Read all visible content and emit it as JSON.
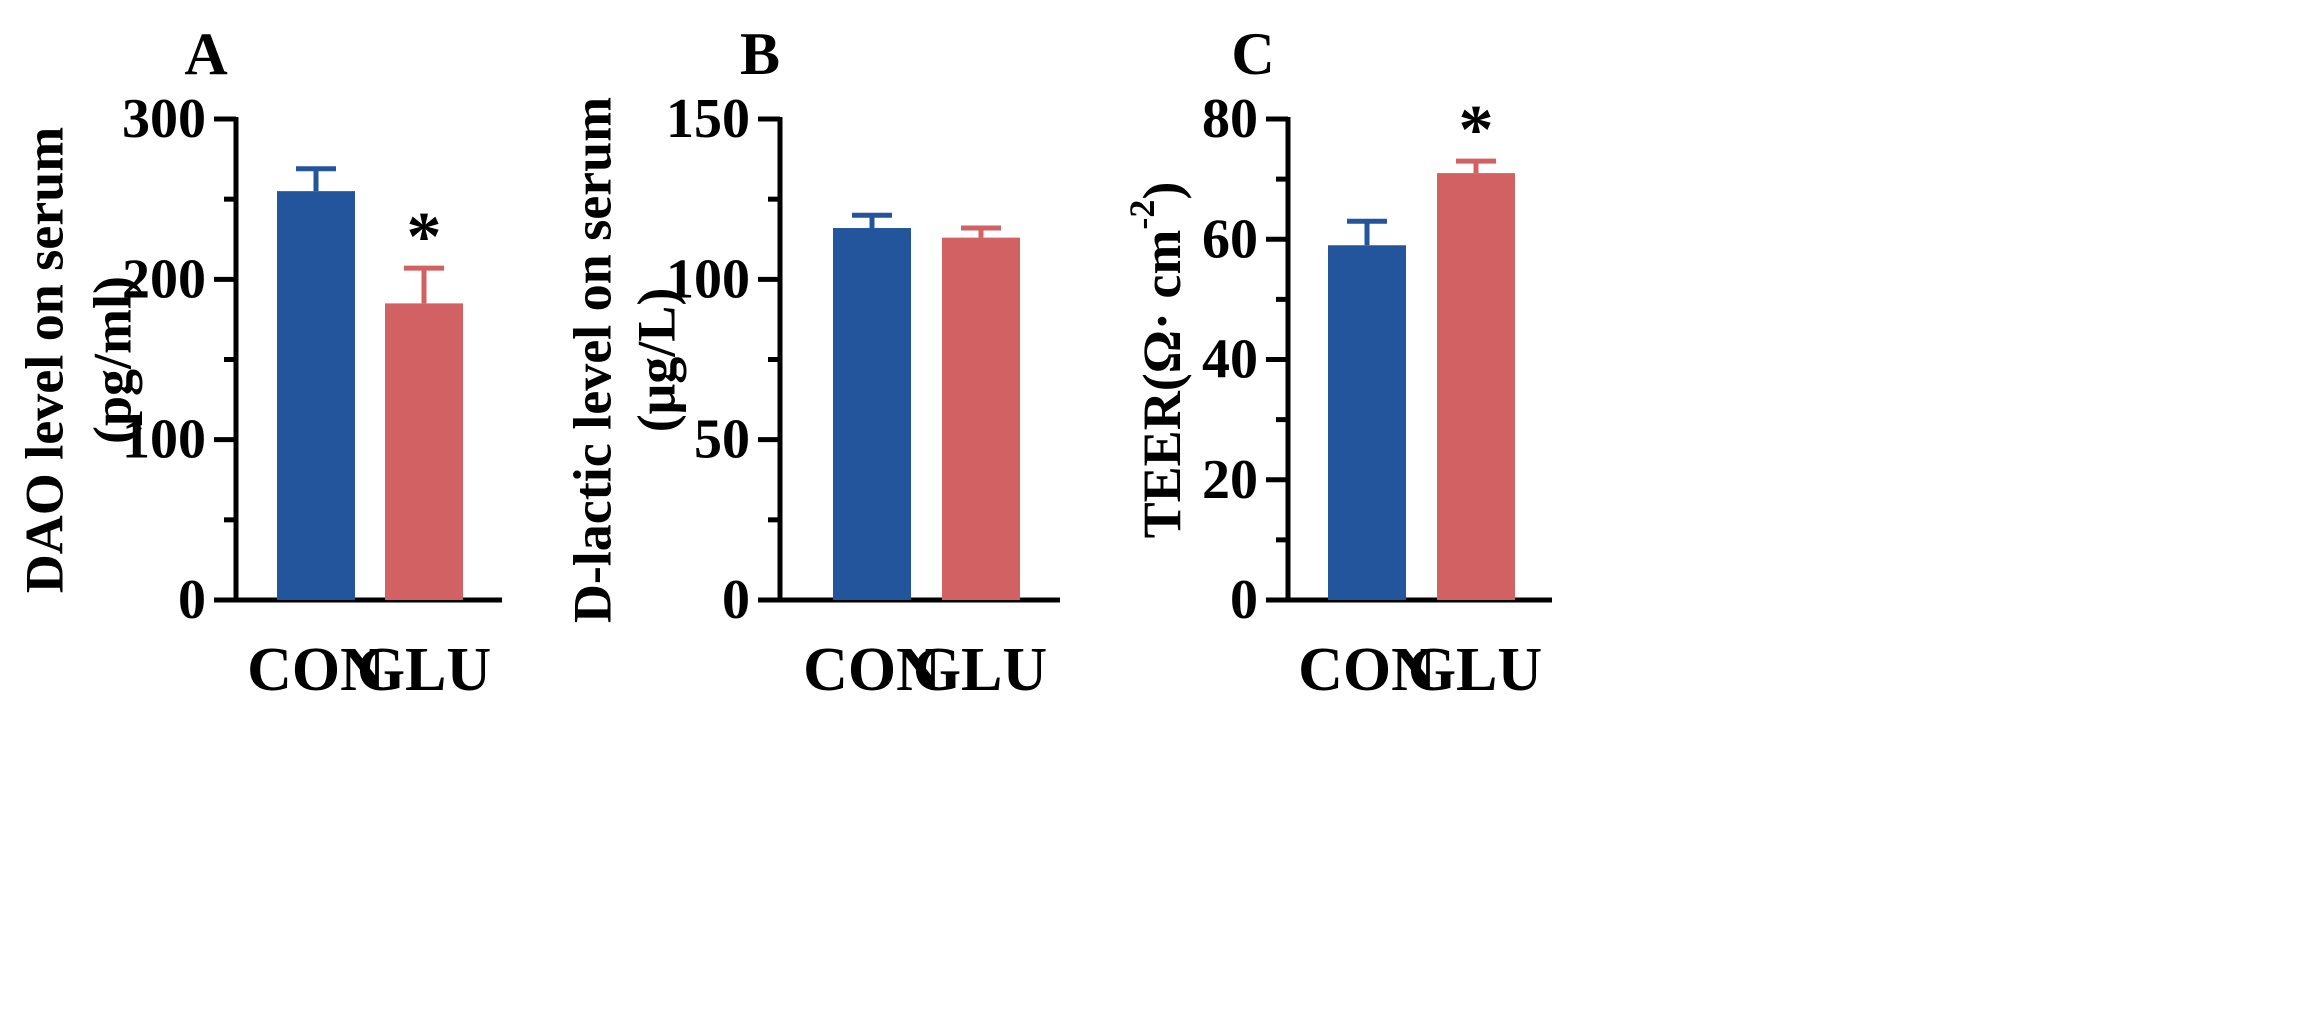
{
  "chart_data": [
    {
      "panel": "A",
      "type": "bar",
      "categories": [
        "CON",
        "GLU"
      ],
      "values": [
        255,
        185
      ],
      "errors": [
        14,
        22
      ],
      "significance": [
        "",
        "*"
      ],
      "ylabel_line1": "DAO level on serum",
      "ylabel_line2": "(pg/ml)",
      "ylim": [
        0,
        300
      ],
      "yticks_major": [
        0,
        100,
        200,
        300
      ],
      "yticks_minor": [
        50,
        150,
        250
      ],
      "colors": [
        "#22559b",
        "#d16163"
      ]
    },
    {
      "panel": "B",
      "type": "bar",
      "categories": [
        "CON",
        "GLU"
      ],
      "values": [
        116,
        113
      ],
      "errors": [
        4,
        3
      ],
      "significance": [
        "",
        ""
      ],
      "ylabel_line1": "D-lactic level on serum",
      "ylabel_line2": "(μg/L)",
      "ylim": [
        0,
        150
      ],
      "yticks_major": [
        0,
        50,
        100,
        150
      ],
      "yticks_minor": [
        25,
        75,
        125
      ],
      "colors": [
        "#22559b",
        "#d16163"
      ]
    },
    {
      "panel": "C",
      "type": "bar",
      "categories": [
        "CON",
        "GLU"
      ],
      "values": [
        59,
        71
      ],
      "errors": [
        4,
        2
      ],
      "significance": [
        "",
        "*"
      ],
      "ylabel_base": "TEER(Ω· cm",
      "ylabel_sup": "-2",
      "ylabel_close": ")",
      "ylim": [
        0,
        80
      ],
      "yticks_major": [
        0,
        20,
        40,
        60,
        80
      ],
      "yticks_minor": [
        10,
        30,
        50,
        70
      ],
      "colors": [
        "#22559b",
        "#d16163"
      ]
    }
  ]
}
